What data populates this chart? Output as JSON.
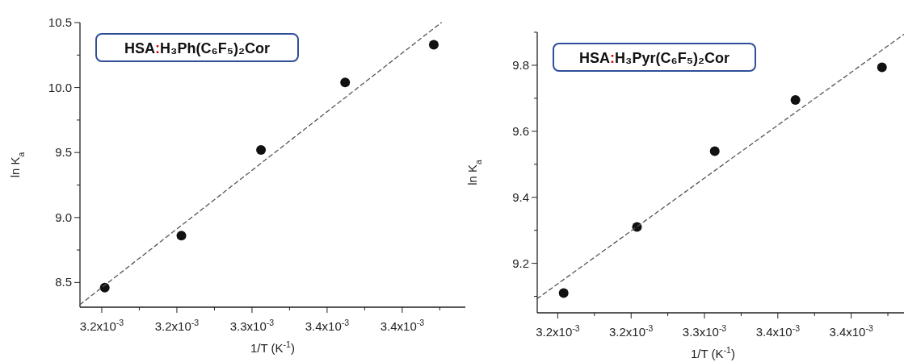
{
  "chart_data": [
    {
      "type": "scatter",
      "xlabel": "1/T (K$^{-1}$)",
      "ylabel": "ln K$_{a}$",
      "annotations": [
        "HSA:H₃Ph(C₆F₅)₂Cor"
      ],
      "x": [
        0.003202,
        0.003253,
        0.003306,
        0.003362,
        0.003421
      ],
      "series": [
        {
          "color": "#111111",
          "marker": "circle",
          "values": [
            8.46,
            8.86,
            9.52,
            10.04,
            10.33
          ]
        },
        {
          "type": "line",
          "color": "#555555",
          "line_style": "dashed",
          "x": [
            0.0031855,
            0.003426
          ],
          "values": [
            8.33,
            10.5
          ]
        }
      ],
      "xlim": [
        0.0031855,
        0.003442
      ],
      "ylim": [
        8.31,
        10.5
      ],
      "xticks": [
        {
          "value": 0.0032,
          "label": "3.2x10$^{-3}$"
        },
        {
          "value": 0.003225,
          "label": null
        },
        {
          "value": 0.00325,
          "label": "3.2x10$^{-3}$"
        },
        {
          "value": 0.003275,
          "label": null
        },
        {
          "value": 0.0033,
          "label": "3.3x10$^{-3}$"
        },
        {
          "value": 0.003325,
          "label": null
        },
        {
          "value": 0.00335,
          "label": "3.4x10$^{-3}$"
        },
        {
          "value": 0.003375,
          "label": null
        },
        {
          "value": 0.0034,
          "label": "3.4x10$^{-3}$"
        },
        {
          "value": 0.003425,
          "label": null
        }
      ],
      "yticks": [
        8.5,
        {
          "value": 8.75,
          "label": null
        },
        {
          "value": 9,
          "label": "9.0"
        },
        {
          "value": 9.25,
          "label": null
        },
        9.5,
        {
          "value": 9.75,
          "label": null
        },
        {
          "value": 10,
          "label": "10.0"
        },
        {
          "value": 10.25,
          "label": null
        },
        10.5
      ],
      "grid": false
    },
    {
      "type": "scatter",
      "xlabel": "1/T (K$^{-1}$)",
      "ylabel": "ln K$_{a}$",
      "annotations": [
        "HSA:H₃Pyr(C₆F₅)₂Cor"
      ],
      "x": [
        0.003204,
        0.003254,
        0.003307,
        0.003362,
        0.003421
      ],
      "series": [
        {
          "color": "#111111",
          "marker": "circle",
          "values": [
            9.11,
            9.31,
            9.54,
            9.695,
            9.794
          ]
        },
        {
          "type": "line",
          "color": "#555555",
          "line_style": "dashed",
          "x": [
            0.003186,
            0.003436
          ],
          "values": [
            9.093,
            9.894
          ]
        }
      ],
      "xlim": [
        0.003186,
        0.003436
      ],
      "ylim": [
        9.05,
        9.9
      ],
      "xticks": [
        {
          "value": 0.0032,
          "label": "3.2x10$^{-3}$"
        },
        {
          "value": 0.003225,
          "label": null
        },
        {
          "value": 0.00325,
          "label": "3.2x10$^{-3}$"
        },
        {
          "value": 0.003275,
          "label": null
        },
        {
          "value": 0.0033,
          "label": "3.3x10$^{-3}$"
        },
        {
          "value": 0.003325,
          "label": null
        },
        {
          "value": 0.00335,
          "label": "3.4x10$^{-3}$"
        },
        {
          "value": 0.003375,
          "label": null
        },
        {
          "value": 0.0034,
          "label": "3.4x10$^{-3}$"
        },
        {
          "value": 0.003425,
          "label": null
        }
      ],
      "yticks": [
        {
          "value": 9.1,
          "label": null
        },
        9.2,
        {
          "value": 9.3,
          "label": null
        },
        9.4,
        {
          "value": 9.5,
          "label": null
        },
        9.6,
        {
          "value": 9.7,
          "label": null
        },
        9.8,
        {
          "value": 9.9,
          "label": null
        }
      ],
      "grid": false
    }
  ]
}
